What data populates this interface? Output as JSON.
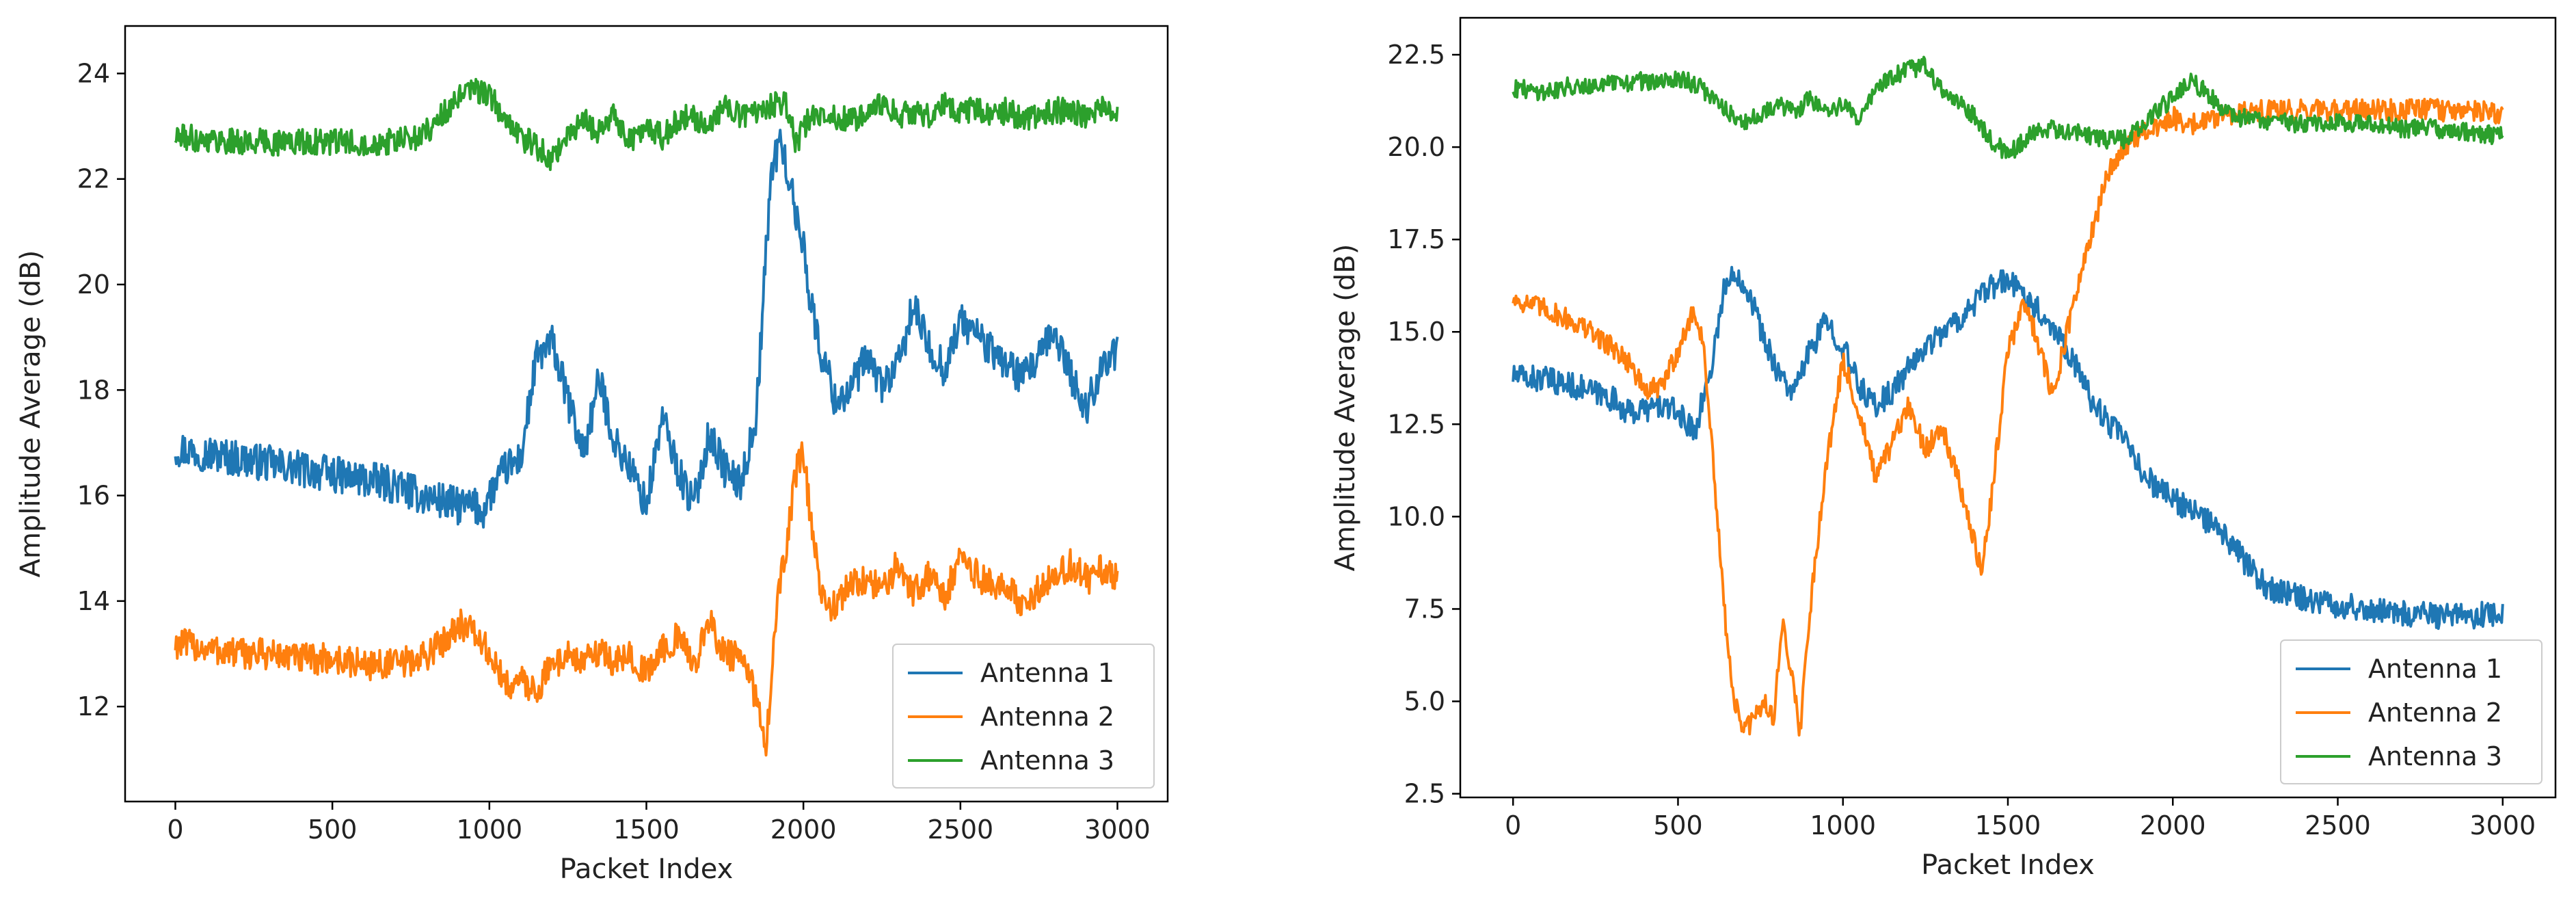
{
  "figure_title": "",
  "chart_data": [
    {
      "type": "line",
      "title": "",
      "xlabel": "Packet Index",
      "ylabel": "Amplitude Average (dB)",
      "xlim": [
        -160,
        3160
      ],
      "ylim": [
        10.2,
        24.9
      ],
      "xticks": [
        0,
        500,
        1000,
        1500,
        2000,
        2500,
        3000
      ],
      "xtick_labels": [
        "0",
        "500",
        "1000",
        "1500",
        "2000",
        "2500",
        "3000"
      ],
      "yticks": [
        12,
        14,
        16,
        18,
        20,
        22,
        24
      ],
      "ytick_labels": [
        "12",
        "14",
        "16",
        "18",
        "20",
        "22",
        "24"
      ],
      "legend_position": "lower-right",
      "series": [
        {
          "name": "Antenna 1",
          "color": "#1f77b4",
          "noise": 0.35,
          "x": [
            0,
            100,
            200,
            300,
            400,
            500,
            600,
            700,
            780,
            850,
            900,
            950,
            980,
            1000,
            1050,
            1100,
            1150,
            1200,
            1250,
            1300,
            1350,
            1400,
            1450,
            1500,
            1550,
            1600,
            1650,
            1700,
            1750,
            1800,
            1850,
            1880,
            1900,
            1930,
            1960,
            1980,
            2000,
            2020,
            2050,
            2080,
            2100,
            2150,
            2200,
            2250,
            2300,
            2350,
            2400,
            2450,
            2500,
            2550,
            2600,
            2650,
            2700,
            2750,
            2800,
            2850,
            2900,
            2950,
            3000
          ],
          "y": [
            16.9,
            16.8,
            16.7,
            16.6,
            16.5,
            16.4,
            16.3,
            16.2,
            16.0,
            15.9,
            15.8,
            15.8,
            15.7,
            16.0,
            16.5,
            16.7,
            18.6,
            18.9,
            17.8,
            16.8,
            18.2,
            17.0,
            16.5,
            15.8,
            17.5,
            16.5,
            15.8,
            17.2,
            16.5,
            16.2,
            17.5,
            20.5,
            22.3,
            22.7,
            21.8,
            21.2,
            20.8,
            19.8,
            18.8,
            18.3,
            17.8,
            18.0,
            18.6,
            18.1,
            18.4,
            19.6,
            18.8,
            18.4,
            19.3,
            19.1,
            18.7,
            18.5,
            18.2,
            18.6,
            19.1,
            18.3,
            17.6,
            18.5,
            18.7
          ]
        },
        {
          "name": "Antenna 2",
          "color": "#ff7f0e",
          "noise": 0.3,
          "x": [
            0,
            100,
            200,
            300,
            400,
            500,
            600,
            700,
            780,
            850,
            900,
            950,
            1000,
            1050,
            1100,
            1150,
            1200,
            1250,
            1300,
            1350,
            1400,
            1450,
            1500,
            1550,
            1600,
            1650,
            1700,
            1750,
            1800,
            1850,
            1880,
            1900,
            1920,
            1950,
            1980,
            2000,
            2030,
            2060,
            2100,
            2150,
            2200,
            2250,
            2300,
            2350,
            2400,
            2450,
            2500,
            2550,
            2600,
            2650,
            2700,
            2750,
            2800,
            2850,
            2900,
            2950,
            3000
          ],
          "y": [
            13.2,
            13.1,
            13.0,
            13.0,
            12.9,
            12.9,
            12.8,
            12.8,
            12.9,
            13.2,
            13.6,
            13.4,
            13.0,
            12.4,
            12.5,
            12.3,
            12.8,
            13.0,
            12.8,
            13.1,
            12.8,
            13.0,
            12.6,
            13.1,
            13.3,
            12.8,
            13.6,
            13.0,
            12.9,
            12.2,
            11.3,
            12.6,
            14.2,
            15.2,
            16.6,
            16.8,
            15.2,
            14.0,
            13.9,
            14.3,
            14.4,
            14.2,
            14.7,
            14.2,
            14.5,
            14.1,
            14.8,
            14.5,
            14.3,
            14.2,
            14.0,
            14.2,
            14.5,
            14.7,
            14.4,
            14.6,
            14.4
          ]
        },
        {
          "name": "Antenna 3",
          "color": "#2ca02c",
          "noise": 0.25,
          "x": [
            0,
            100,
            200,
            300,
            400,
            500,
            600,
            700,
            780,
            850,
            900,
            950,
            1000,
            1050,
            1100,
            1150,
            1200,
            1250,
            1300,
            1350,
            1400,
            1450,
            1500,
            1550,
            1600,
            1650,
            1700,
            1750,
            1800,
            1850,
            1900,
            1940,
            1980,
            2000,
            2030,
            2060,
            2100,
            2150,
            2200,
            2250,
            2300,
            2350,
            2400,
            2450,
            2500,
            2550,
            2600,
            2650,
            2700,
            2750,
            2800,
            2850,
            2900,
            2950,
            3000
          ],
          "y": [
            22.8,
            22.75,
            22.7,
            22.7,
            22.7,
            22.7,
            22.7,
            22.7,
            22.8,
            23.2,
            23.5,
            23.7,
            23.6,
            23.1,
            22.8,
            22.6,
            22.4,
            22.8,
            23.1,
            22.9,
            23.2,
            22.7,
            23.0,
            22.8,
            23.1,
            23.2,
            23.0,
            23.4,
            23.2,
            23.3,
            23.4,
            23.5,
            22.6,
            23.0,
            23.2,
            23.3,
            23.2,
            23.1,
            23.2,
            23.4,
            23.2,
            23.3,
            23.2,
            23.4,
            23.3,
            23.3,
            23.2,
            23.3,
            23.1,
            23.2,
            23.3,
            23.3,
            23.2,
            23.4,
            23.3
          ]
        }
      ]
    },
    {
      "type": "line",
      "title": "",
      "xlabel": "Packet Index",
      "ylabel": "Amplitude Average (dB)",
      "xlim": [
        -160,
        3160
      ],
      "ylim": [
        2.4,
        23.5
      ],
      "xticks": [
        0,
        500,
        1000,
        1500,
        2000,
        2500,
        3000
      ],
      "xtick_labels": [
        "0",
        "500",
        "1000",
        "1500",
        "2000",
        "2500",
        "3000"
      ],
      "yticks": [
        2.5,
        5.0,
        7.5,
        10.0,
        12.5,
        15.0,
        17.5,
        20.0,
        22.5
      ],
      "ytick_labels": [
        "2.5",
        "5.0",
        "7.5",
        "10.0",
        "12.5",
        "15.0",
        "17.5",
        "20.0",
        "22.5"
      ],
      "legend_position": "lower-right",
      "series": [
        {
          "name": "Antenna 1",
          "color": "#1f77b4",
          "noise": 0.35,
          "x": [
            0,
            100,
            200,
            300,
            350,
            400,
            450,
            500,
            550,
            600,
            640,
            680,
            720,
            760,
            800,
            850,
            900,
            950,
            1000,
            1050,
            1100,
            1150,
            1200,
            1250,
            1300,
            1350,
            1400,
            1450,
            1500,
            1550,
            1600,
            1650,
            1700,
            1750,
            1800,
            1850,
            1900,
            1950,
            2000,
            2050,
            2100,
            2150,
            2200,
            2250,
            2300,
            2350,
            2400,
            2500,
            2600,
            2700,
            2800,
            2900,
            3000
          ],
          "y": [
            13.8,
            13.7,
            13.5,
            13.2,
            12.8,
            12.9,
            13.0,
            12.8,
            12.3,
            14.0,
            16.2,
            16.6,
            16.0,
            14.8,
            14.0,
            13.3,
            14.5,
            15.3,
            14.6,
            13.5,
            13.0,
            13.4,
            14.0,
            14.6,
            15.0,
            15.3,
            15.8,
            16.2,
            16.4,
            16.0,
            15.5,
            15.0,
            14.2,
            13.2,
            12.6,
            12.1,
            11.3,
            10.8,
            10.5,
            10.2,
            9.9,
            9.5,
            9.0,
            8.4,
            8.0,
            7.9,
            7.8,
            7.6,
            7.5,
            7.4,
            7.3,
            7.3,
            7.4
          ]
        },
        {
          "name": "Antenna 2",
          "color": "#ff7f0e",
          "noise": 0.3,
          "x": [
            0,
            100,
            200,
            300,
            350,
            400,
            450,
            500,
            550,
            580,
            610,
            640,
            670,
            700,
            730,
            760,
            790,
            820,
            850,
            870,
            900,
            950,
            1000,
            1050,
            1100,
            1150,
            1200,
            1250,
            1300,
            1350,
            1400,
            1420,
            1450,
            1500,
            1550,
            1600,
            1630,
            1650,
            1700,
            1750,
            1800,
            1850,
            1900,
            1950,
            2000,
            2050,
            2100,
            2150,
            2200,
            2300,
            2400,
            2500,
            2600,
            2700,
            2800,
            2900,
            3000
          ],
          "y": [
            15.9,
            15.6,
            15.2,
            14.6,
            14.2,
            13.4,
            13.5,
            14.5,
            15.6,
            14.5,
            11.0,
            7.5,
            5.0,
            4.2,
            4.5,
            5.0,
            4.6,
            7.2,
            5.4,
            4.2,
            7.5,
            11.5,
            14.2,
            12.8,
            11.0,
            12.0,
            13.0,
            11.8,
            12.5,
            11.0,
            9.2,
            8.5,
            10.5,
            14.5,
            15.8,
            14.5,
            13.4,
            13.8,
            15.8,
            17.5,
            19.2,
            20.0,
            20.3,
            20.5,
            20.8,
            20.6,
            20.7,
            20.9,
            20.9,
            21.0,
            21.0,
            21.0,
            21.0,
            21.0,
            21.0,
            21.0,
            20.9
          ]
        },
        {
          "name": "Antenna 3",
          "color": "#2ca02c",
          "noise": 0.25,
          "x": [
            0,
            100,
            200,
            300,
            400,
            450,
            500,
            550,
            600,
            650,
            700,
            750,
            800,
            850,
            900,
            950,
            1000,
            1050,
            1100,
            1150,
            1200,
            1250,
            1300,
            1350,
            1400,
            1450,
            1500,
            1550,
            1600,
            1700,
            1800,
            1850,
            1900,
            1950,
            2000,
            2050,
            2100,
            2150,
            2200,
            2300,
            2400,
            2500,
            2600,
            2700,
            2800,
            2900,
            3000
          ],
          "y": [
            21.6,
            21.5,
            21.7,
            21.7,
            21.8,
            21.7,
            21.9,
            21.7,
            21.4,
            21.0,
            20.6,
            20.9,
            21.2,
            20.9,
            21.3,
            21.0,
            21.1,
            20.8,
            21.6,
            21.9,
            22.1,
            22.2,
            21.5,
            21.2,
            20.8,
            20.2,
            19.8,
            20.2,
            20.5,
            20.4,
            20.2,
            20.2,
            20.5,
            21.0,
            21.3,
            21.8,
            21.5,
            21.0,
            20.8,
            20.7,
            20.6,
            20.7,
            20.6,
            20.5,
            20.5,
            20.4,
            20.3
          ]
        }
      ]
    }
  ]
}
